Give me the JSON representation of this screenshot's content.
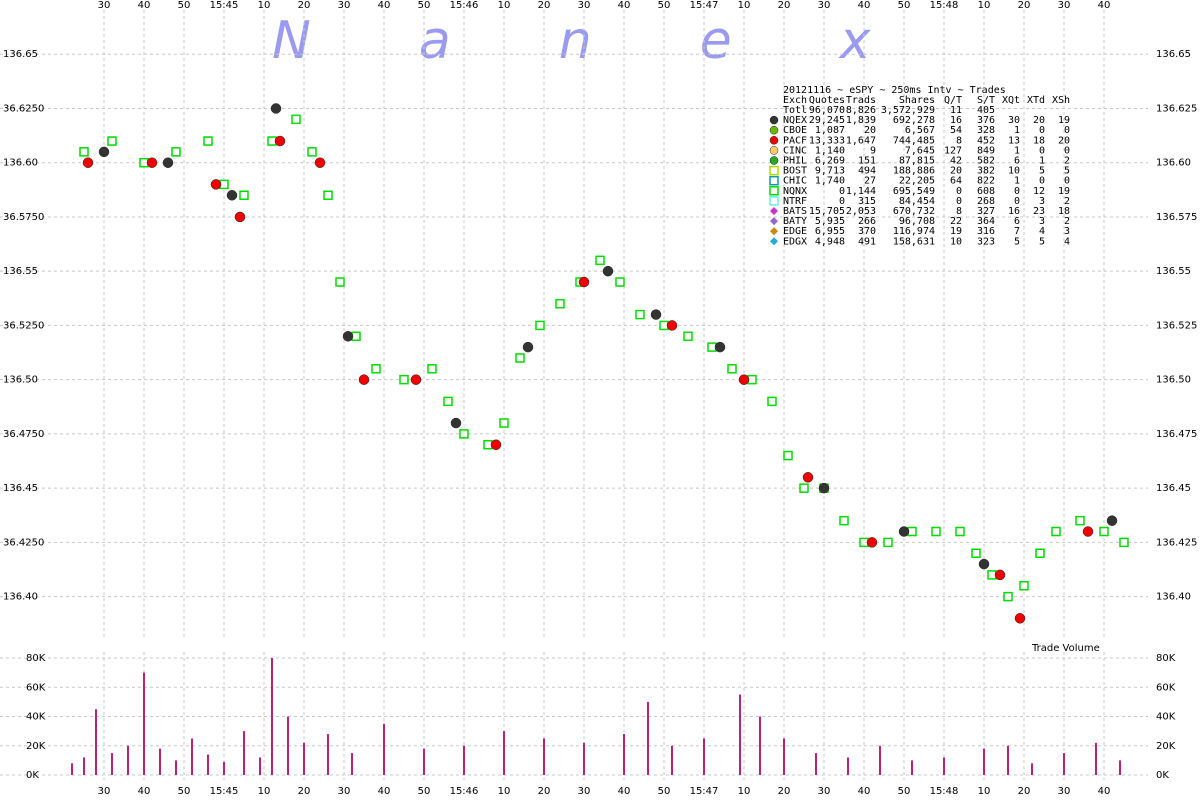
{
  "chart_data": [
    {
      "type": "scatter",
      "title": "20121116 ~ eSPY ~ 250ms Intv ~ Trades",
      "watermark": "Nanex",
      "xlim": [
        56659,
        56930
      ],
      "xticks": [
        {
          "value": 56670,
          "label": "30"
        },
        {
          "value": 56680,
          "label": "40"
        },
        {
          "value": 56690,
          "label": "50"
        },
        {
          "value": 56700,
          "label": "15:45"
        },
        {
          "value": 56710,
          "label": "10"
        },
        {
          "value": 56720,
          "label": "20"
        },
        {
          "value": 56730,
          "label": "30"
        },
        {
          "value": 56740,
          "label": "40"
        },
        {
          "value": 56750,
          "label": "50"
        },
        {
          "value": 56760,
          "label": "15:46"
        },
        {
          "value": 56770,
          "label": "10"
        },
        {
          "value": 56780,
          "label": "20"
        },
        {
          "value": 56790,
          "label": "30"
        },
        {
          "value": 56800,
          "label": "40"
        },
        {
          "value": 56810,
          "label": "50"
        },
        {
          "value": 56820,
          "label": "15:47"
        },
        {
          "value": 56830,
          "label": "10"
        },
        {
          "value": 56840,
          "label": "20"
        },
        {
          "value": 56850,
          "label": "30"
        },
        {
          "value": 56860,
          "label": "40"
        },
        {
          "value": 56870,
          "label": "50"
        },
        {
          "value": 56880,
          "label": "15:48"
        },
        {
          "value": 56890,
          "label": "10"
        },
        {
          "value": 56900,
          "label": "20"
        },
        {
          "value": 56910,
          "label": "30"
        },
        {
          "value": 56920,
          "label": "40"
        }
      ],
      "ylim": [
        136.38,
        136.675
      ],
      "yticks": [
        {
          "value": 136.65,
          "label": "136.65"
        },
        136.625,
        {
          "value": 136.6,
          "label": "136.60"
        },
        136.575,
        {
          "value": 136.55,
          "label": "136.55"
        },
        136.525,
        {
          "value": 136.5,
          "label": "136.50"
        },
        136.475,
        {
          "value": 136.45,
          "label": "136.45"
        },
        136.425,
        {
          "value": 136.4,
          "label": "136.40"
        }
      ],
      "ytick_labels_left": [
        "136.65",
        "36.6250",
        "136.60",
        "36.5750",
        "136.55",
        "36.5250",
        "136.50",
        "36.4750",
        "136.45",
        "36.4250",
        "136.40"
      ],
      "grid": true,
      "series": [
        {
          "color": "#00dd00",
          "marker": "square",
          "x": [
            56665,
            56672,
            56680,
            56688,
            56696,
            56700,
            56705,
            56712,
            56718,
            56722,
            56726,
            56729,
            56733,
            56738,
            56745,
            56752,
            56756,
            56760,
            56766,
            56770,
            56774,
            56779,
            56784,
            56789,
            56794,
            56799,
            56804,
            56810,
            56816,
            56822,
            56827,
            56832,
            56837,
            56841,
            56845,
            56850,
            56855,
            56860,
            56866,
            56872,
            56878,
            56884,
            56888,
            56892,
            56896,
            56900,
            56904,
            56908,
            56914,
            56920,
            56925
          ],
          "values": [
            136.605,
            136.61,
            136.6,
            136.605,
            136.61,
            136.59,
            136.585,
            136.61,
            136.62,
            136.605,
            136.585,
            136.545,
            136.52,
            136.505,
            136.5,
            136.505,
            136.49,
            136.475,
            136.47,
            136.48,
            136.51,
            136.525,
            136.535,
            136.545,
            136.555,
            136.545,
            136.53,
            136.525,
            136.52,
            136.515,
            136.505,
            136.5,
            136.49,
            136.465,
            136.45,
            136.45,
            136.435,
            136.425,
            136.425,
            136.43,
            136.43,
            136.43,
            136.42,
            136.41,
            136.4,
            136.405,
            136.42,
            136.43,
            136.435,
            136.43,
            136.425
          ]
        },
        {
          "color": "#ee0000",
          "marker": "circle",
          "x": [
            56666,
            56682,
            56698,
            56704,
            56714,
            56724,
            56735,
            56748,
            56768,
            56790,
            56812,
            56830,
            56846,
            56862,
            56894,
            56899,
            56916
          ],
          "values": [
            136.6,
            136.6,
            136.59,
            136.575,
            136.61,
            136.6,
            136.5,
            136.5,
            136.47,
            136.545,
            136.525,
            136.5,
            136.455,
            136.425,
            136.41,
            136.39,
            136.43
          ]
        },
        {
          "color": "#333333",
          "marker": "circle",
          "x": [
            56670,
            56686,
            56702,
            56713,
            56731,
            56758,
            56776,
            56796,
            56808,
            56824,
            56850,
            56870,
            56890,
            56922
          ],
          "values": [
            136.605,
            136.6,
            136.585,
            136.625,
            136.52,
            136.48,
            136.515,
            136.55,
            136.53,
            136.515,
            136.45,
            136.43,
            136.415,
            136.435
          ]
        }
      ],
      "legend": {
        "columns": [
          "Exch",
          "Quotes",
          "Trads",
          "Shares",
          "Q/T",
          "S/T",
          "XQt",
          "XTd",
          "XSh"
        ],
        "rows": [
          {
            "cells": [
              "Totl",
              "96,070",
              "8,826",
              "3,572,929",
              "11",
              "405"
            ]
          },
          {
            "symbol": "circle",
            "color": "#333333",
            "cells": [
              "NQEX",
              "29,245",
              "1,839",
              "692,278",
              "16",
              "376",
              "30",
              "20",
              "19"
            ]
          },
          {
            "symbol": "circle",
            "color": "#66bb00",
            "cells": [
              "CBOE",
              "1,087",
              "20",
              "6,567",
              "54",
              "328",
              "1",
              "0",
              "0"
            ]
          },
          {
            "symbol": "circle",
            "color": "#ee0000",
            "cells": [
              "PACF",
              "13,333",
              "1,647",
              "744,485",
              "8",
              "452",
              "13",
              "18",
              "20"
            ]
          },
          {
            "symbol": "circle",
            "color": "#ffcc66",
            "cells": [
              "CINC",
              "1,140",
              "9",
              "7,645",
              "127",
              "849",
              "1",
              "0",
              "0"
            ]
          },
          {
            "symbol": "circle",
            "color": "#22aa22",
            "cells": [
              "PHIL",
              "6,269",
              "151",
              "87,815",
              "42",
              "582",
              "6",
              "1",
              "2"
            ]
          },
          {
            "symbol": "square",
            "color": "#aadd00",
            "cells": [
              "BOST",
              "9,713",
              "494",
              "188,886",
              "20",
              "382",
              "10",
              "5",
              "5"
            ]
          },
          {
            "symbol": "square",
            "color": "#1199aa",
            "cells": [
              "CHIC",
              "1,740",
              "27",
              "22,205",
              "64",
              "822",
              "1",
              "0",
              "0"
            ]
          },
          {
            "symbol": "square",
            "color": "#00dd00",
            "cells": [
              "NQNX",
              "0",
              "1,144",
              "695,549",
              "0",
              "608",
              "0",
              "12",
              "19"
            ]
          },
          {
            "symbol": "square",
            "color": "#66eeee",
            "cells": [
              "NTRF",
              "0",
              "315",
              "84,454",
              "0",
              "268",
              "0",
              "3",
              "2"
            ]
          },
          {
            "symbol": "diamond",
            "color": "#cc33cc",
            "cells": [
              "BATS",
              "15,705",
              "2,053",
              "670,732",
              "8",
              "327",
              "16",
              "23",
              "18"
            ]
          },
          {
            "symbol": "diamond",
            "color": "#9966cc",
            "cells": [
              "BATY",
              "5,935",
              "266",
              "96,708",
              "22",
              "364",
              "6",
              "3",
              "2"
            ]
          },
          {
            "symbol": "diamond",
            "color": "#cc8800",
            "cells": [
              "EDGE",
              "6,955",
              "370",
              "116,974",
              "19",
              "316",
              "7",
              "4",
              "3"
            ]
          },
          {
            "symbol": "diamond",
            "color": "#22aadd",
            "cells": [
              "EDGX",
              "4,948",
              "491",
              "158,631",
              "10",
              "323",
              "5",
              "5",
              "4"
            ]
          }
        ]
      }
    },
    {
      "type": "bar",
      "title": "Trade Volume",
      "x": [
        56662,
        56665,
        56668,
        56672,
        56676,
        56680,
        56684,
        56688,
        56692,
        56696,
        56700,
        56705,
        56709,
        56712,
        56716,
        56720,
        56726,
        56732,
        56740,
        56750,
        56760,
        56770,
        56780,
        56790,
        56800,
        56806,
        56812,
        56820,
        56829,
        56834,
        56840,
        56848,
        56856,
        56864,
        56872,
        56880,
        56890,
        56896,
        56902,
        56910,
        56918,
        56924
      ],
      "values": [
        8000,
        12000,
        45000,
        15000,
        20000,
        70000,
        18000,
        10000,
        25000,
        14000,
        9000,
        30000,
        12000,
        80000,
        40000,
        22000,
        28000,
        15000,
        35000,
        18000,
        20000,
        30000,
        25000,
        22000,
        28000,
        50000,
        20000,
        25000,
        55000,
        40000,
        25000,
        15000,
        12000,
        20000,
        10000,
        12000,
        18000,
        20000,
        8000,
        15000,
        22000,
        10000
      ],
      "color": "#bb2277",
      "ylim": [
        0,
        80000
      ],
      "yticks": [
        {
          "value": 0,
          "label": "0K"
        },
        {
          "value": 20000,
          "label": "20K"
        },
        {
          "value": 40000,
          "label": "40K"
        },
        {
          "value": 60000,
          "label": "60K"
        },
        {
          "value": 80000,
          "label": "80K"
        }
      ],
      "grid": true
    }
  ]
}
